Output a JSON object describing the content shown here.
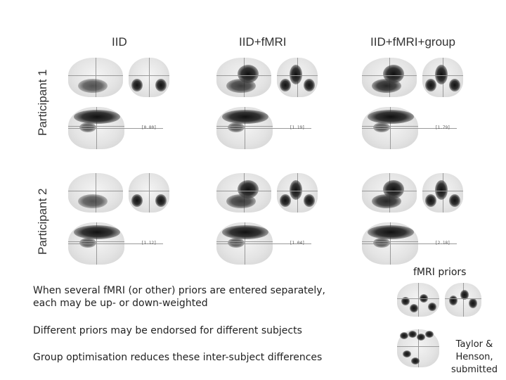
{
  "columns": [
    "IID",
    "IID+fMRI",
    "IID+fMRI+group"
  ],
  "rows": [
    "Participant 1",
    "Participant 2"
  ],
  "max_values": [
    [
      "[0.80]",
      "[1.19]",
      "[1.79]"
    ],
    [
      "[1.12]",
      "[1.04]",
      "[2.18]"
    ]
  ],
  "text": {
    "paragraph1": "When several fMRI (or other) priors are entered separately,\neach may be up- or down-weighted",
    "paragraph2": "Different priors may be endorsed for different subjects",
    "paragraph3": "Group optimisation reduces these inter-subject differences"
  },
  "priors_title": "fMRI priors",
  "citation": "Taylor &\nHenson,\nsubmitted"
}
